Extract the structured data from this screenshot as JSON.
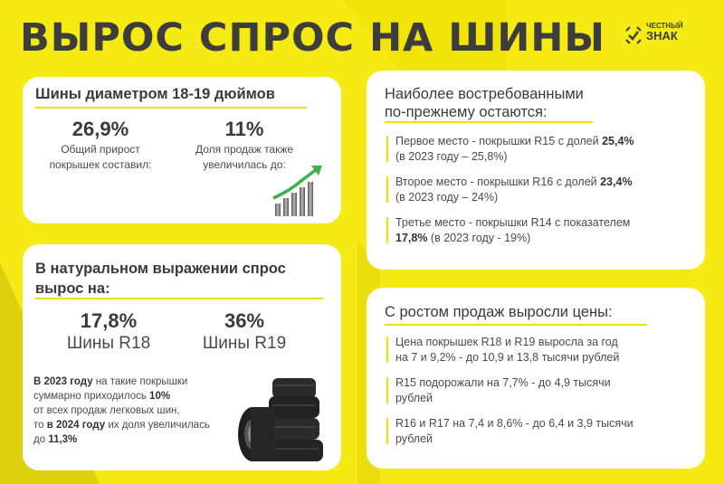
{
  "title": "ВЫРОС СПРОС НА ШИНЫ",
  "logo": {
    "line1": "ЧЕСТНЫЙ",
    "line2": "ЗНАК"
  },
  "card_diameter": {
    "title": "Шины диаметром 18-19 дюймов",
    "stat1": {
      "value": "26,9%",
      "caption_line1": "Общий прирост",
      "caption_line2": "покрышек составил:"
    },
    "stat2": {
      "value": "11%",
      "caption_line1": "Доля продаж также",
      "caption_line2": "увеличилась до:"
    },
    "icon": "growth-chart-icon"
  },
  "card_natural": {
    "title_line1": "В натуральном выражении спрос",
    "title_line2": "вырос на:",
    "stat1": {
      "value": "17,8%",
      "label": "Шины R18"
    },
    "stat2": {
      "value": "36%",
      "label": "Шины R19"
    },
    "note": {
      "p1_bold": "В 2023 году",
      "p1_rest": " на такие покрышки",
      "p2_text": "суммарно приходилось ",
      "p2_bold": "10%",
      "p3_text": "от всех продаж легковых шин,",
      "p4_text": "то ",
      "p4_bold": "в 2024 году",
      "p4_rest": " их доля увеличилась",
      "p5_text": "до ",
      "p5_bold": "11,3%"
    },
    "icon": "tires-stack-icon"
  },
  "card_popular": {
    "title_line1": "Наиболее востребованными",
    "title_line2": "по-прежнему остаются:",
    "items": [
      {
        "text": "Первое место - покрышки R15 с долей ",
        "bold": "25,4%",
        "sub": "(в 2023 году – 25,8%)"
      },
      {
        "text": "Второе место - покрышки R16 с долей ",
        "bold": "23,4%",
        "sub": "(в 2023 году – 24%)"
      },
      {
        "text": "Третье место - покрышки R14 с показателем",
        "bold": "17,8%",
        "sub": " (в 2023 году - 19%)"
      }
    ]
  },
  "card_prices": {
    "title": "С ростом продаж выросли цены:",
    "items": [
      {
        "line1": "Цена покрышек R18 и R19 выросла за год",
        "line2": "на 7 и 9,2% - до 10,9 и 13,8 тысячи рублей"
      },
      {
        "line1": "R15 подорожали на 7,7% - до 4,9 тысячи",
        "line2": "рублей"
      },
      {
        "line1": "R16 и R17 на 7,4 и 8,6% - до 6,4 и 3,9 тысячи",
        "line2": "рублей"
      }
    ]
  },
  "colors": {
    "background": "#f5ea14",
    "accent": "#f0e100",
    "dark": "#3d3d3d",
    "card": "#ffffff"
  }
}
